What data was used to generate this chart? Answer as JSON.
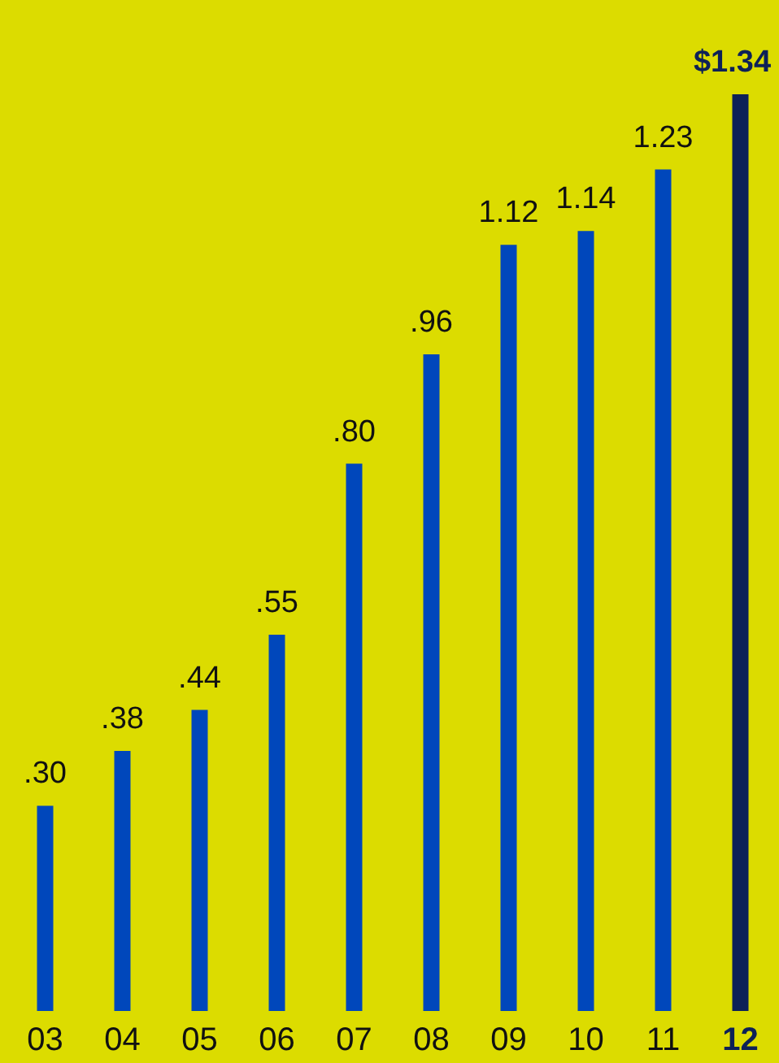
{
  "chart_data": {
    "type": "bar",
    "categories": [
      "03",
      "04",
      "05",
      "06",
      "07",
      "08",
      "09",
      "10",
      "11",
      "12"
    ],
    "values": [
      0.3,
      0.38,
      0.44,
      0.55,
      0.8,
      0.96,
      1.12,
      1.14,
      1.23,
      1.34
    ],
    "value_labels": [
      ".30",
      ".38",
      ".44",
      ".55",
      ".80",
      ".96",
      "1.12",
      "1.14",
      "1.23",
      "$1.34"
    ],
    "colors": [
      "#0047bb",
      "#0047bb",
      "#0047bb",
      "#0047bb",
      "#0047bb",
      "#0047bb",
      "#0047bb",
      "#0047bb",
      "#0047bb",
      "#0d2157"
    ]
  }
}
